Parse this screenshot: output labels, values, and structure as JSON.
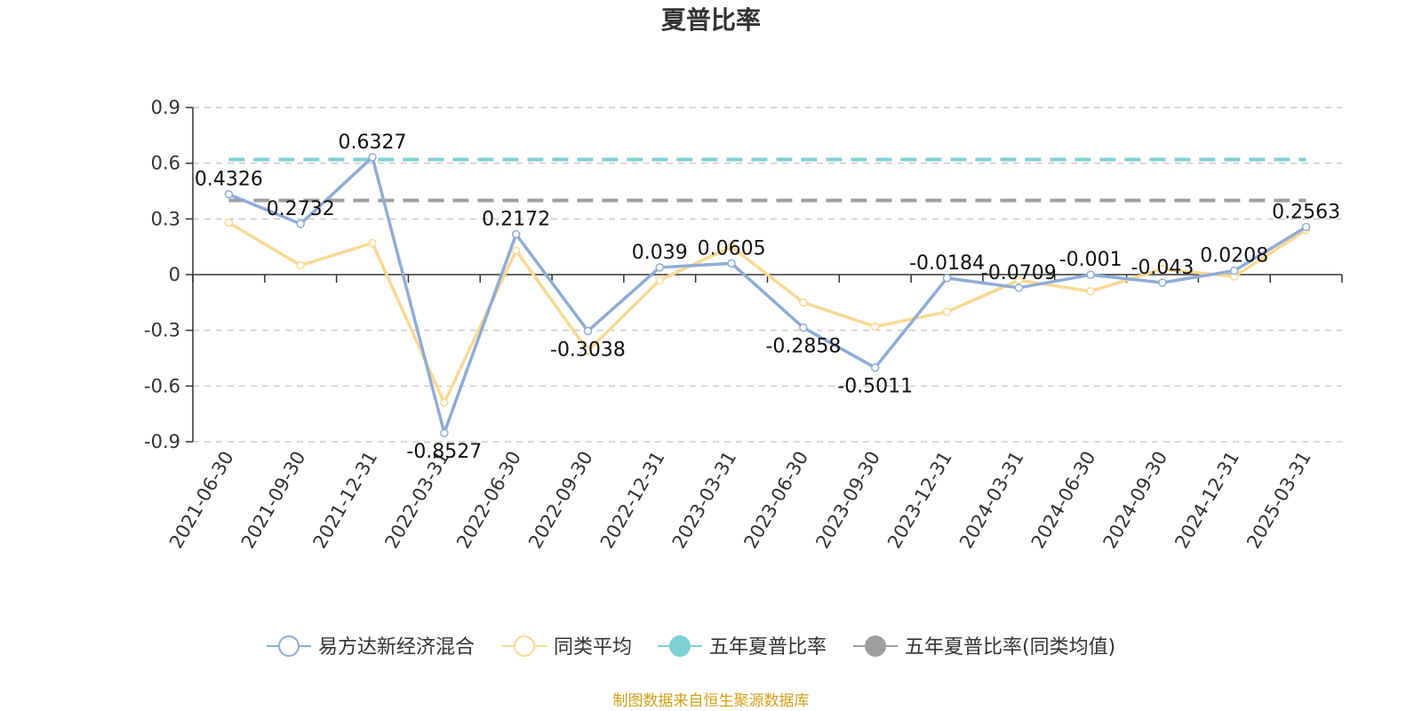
{
  "chart_data": {
    "type": "line",
    "title": "夏普比率",
    "categories": [
      "2021-06-30",
      "2021-09-30",
      "2021-12-31",
      "2022-03-31",
      "2022-06-30",
      "2022-09-30",
      "2022-12-31",
      "2023-03-31",
      "2023-06-30",
      "2023-09-30",
      "2023-12-31",
      "2024-03-31",
      "2024-06-30",
      "2024-09-30",
      "2024-12-31",
      "2025-03-31"
    ],
    "y_ticks": [
      "0.9",
      "0.6",
      "0.3",
      "0",
      "-0.3",
      "-0.6",
      "-0.9"
    ],
    "ylim": [
      -0.9,
      0.9
    ],
    "grid": "horizontal-dashed",
    "legend_position": "bottom",
    "series": [
      {
        "name": "易方达新经济混合",
        "color": "#8eacd8",
        "values": [
          0.4326,
          0.2732,
          0.6327,
          -0.8527,
          0.2172,
          -0.3038,
          0.039,
          0.0605,
          -0.2858,
          -0.5011,
          -0.0184,
          -0.0709,
          -0.001,
          -0.043,
          0.0208,
          0.2563
        ],
        "labels": [
          "0.4326",
          "0.2732",
          "0.6327",
          "-0.8527",
          "0.2172",
          "-0.3038",
          "0.039",
          "0.0605",
          "-0.2858",
          "-0.5011",
          "-0.0184",
          "-0.0709",
          "-0.001",
          "-0.043",
          "0.0208",
          "0.2563"
        ]
      },
      {
        "name": "同类平均",
        "color": "#fbd992",
        "values": [
          0.28,
          0.05,
          0.17,
          -0.69,
          0.13,
          -0.41,
          -0.03,
          0.15,
          -0.15,
          -0.28,
          -0.2,
          -0.03,
          -0.09,
          0.03,
          -0.01,
          0.24
        ]
      },
      {
        "name": "五年夏普比率",
        "color": "#7fd1d6",
        "value": 0.62
      },
      {
        "name": "五年夏普比率(同类均值)",
        "color": "#9e9e9e",
        "value": 0.4
      }
    ]
  },
  "source": "制图数据来自恒生聚源数据库"
}
